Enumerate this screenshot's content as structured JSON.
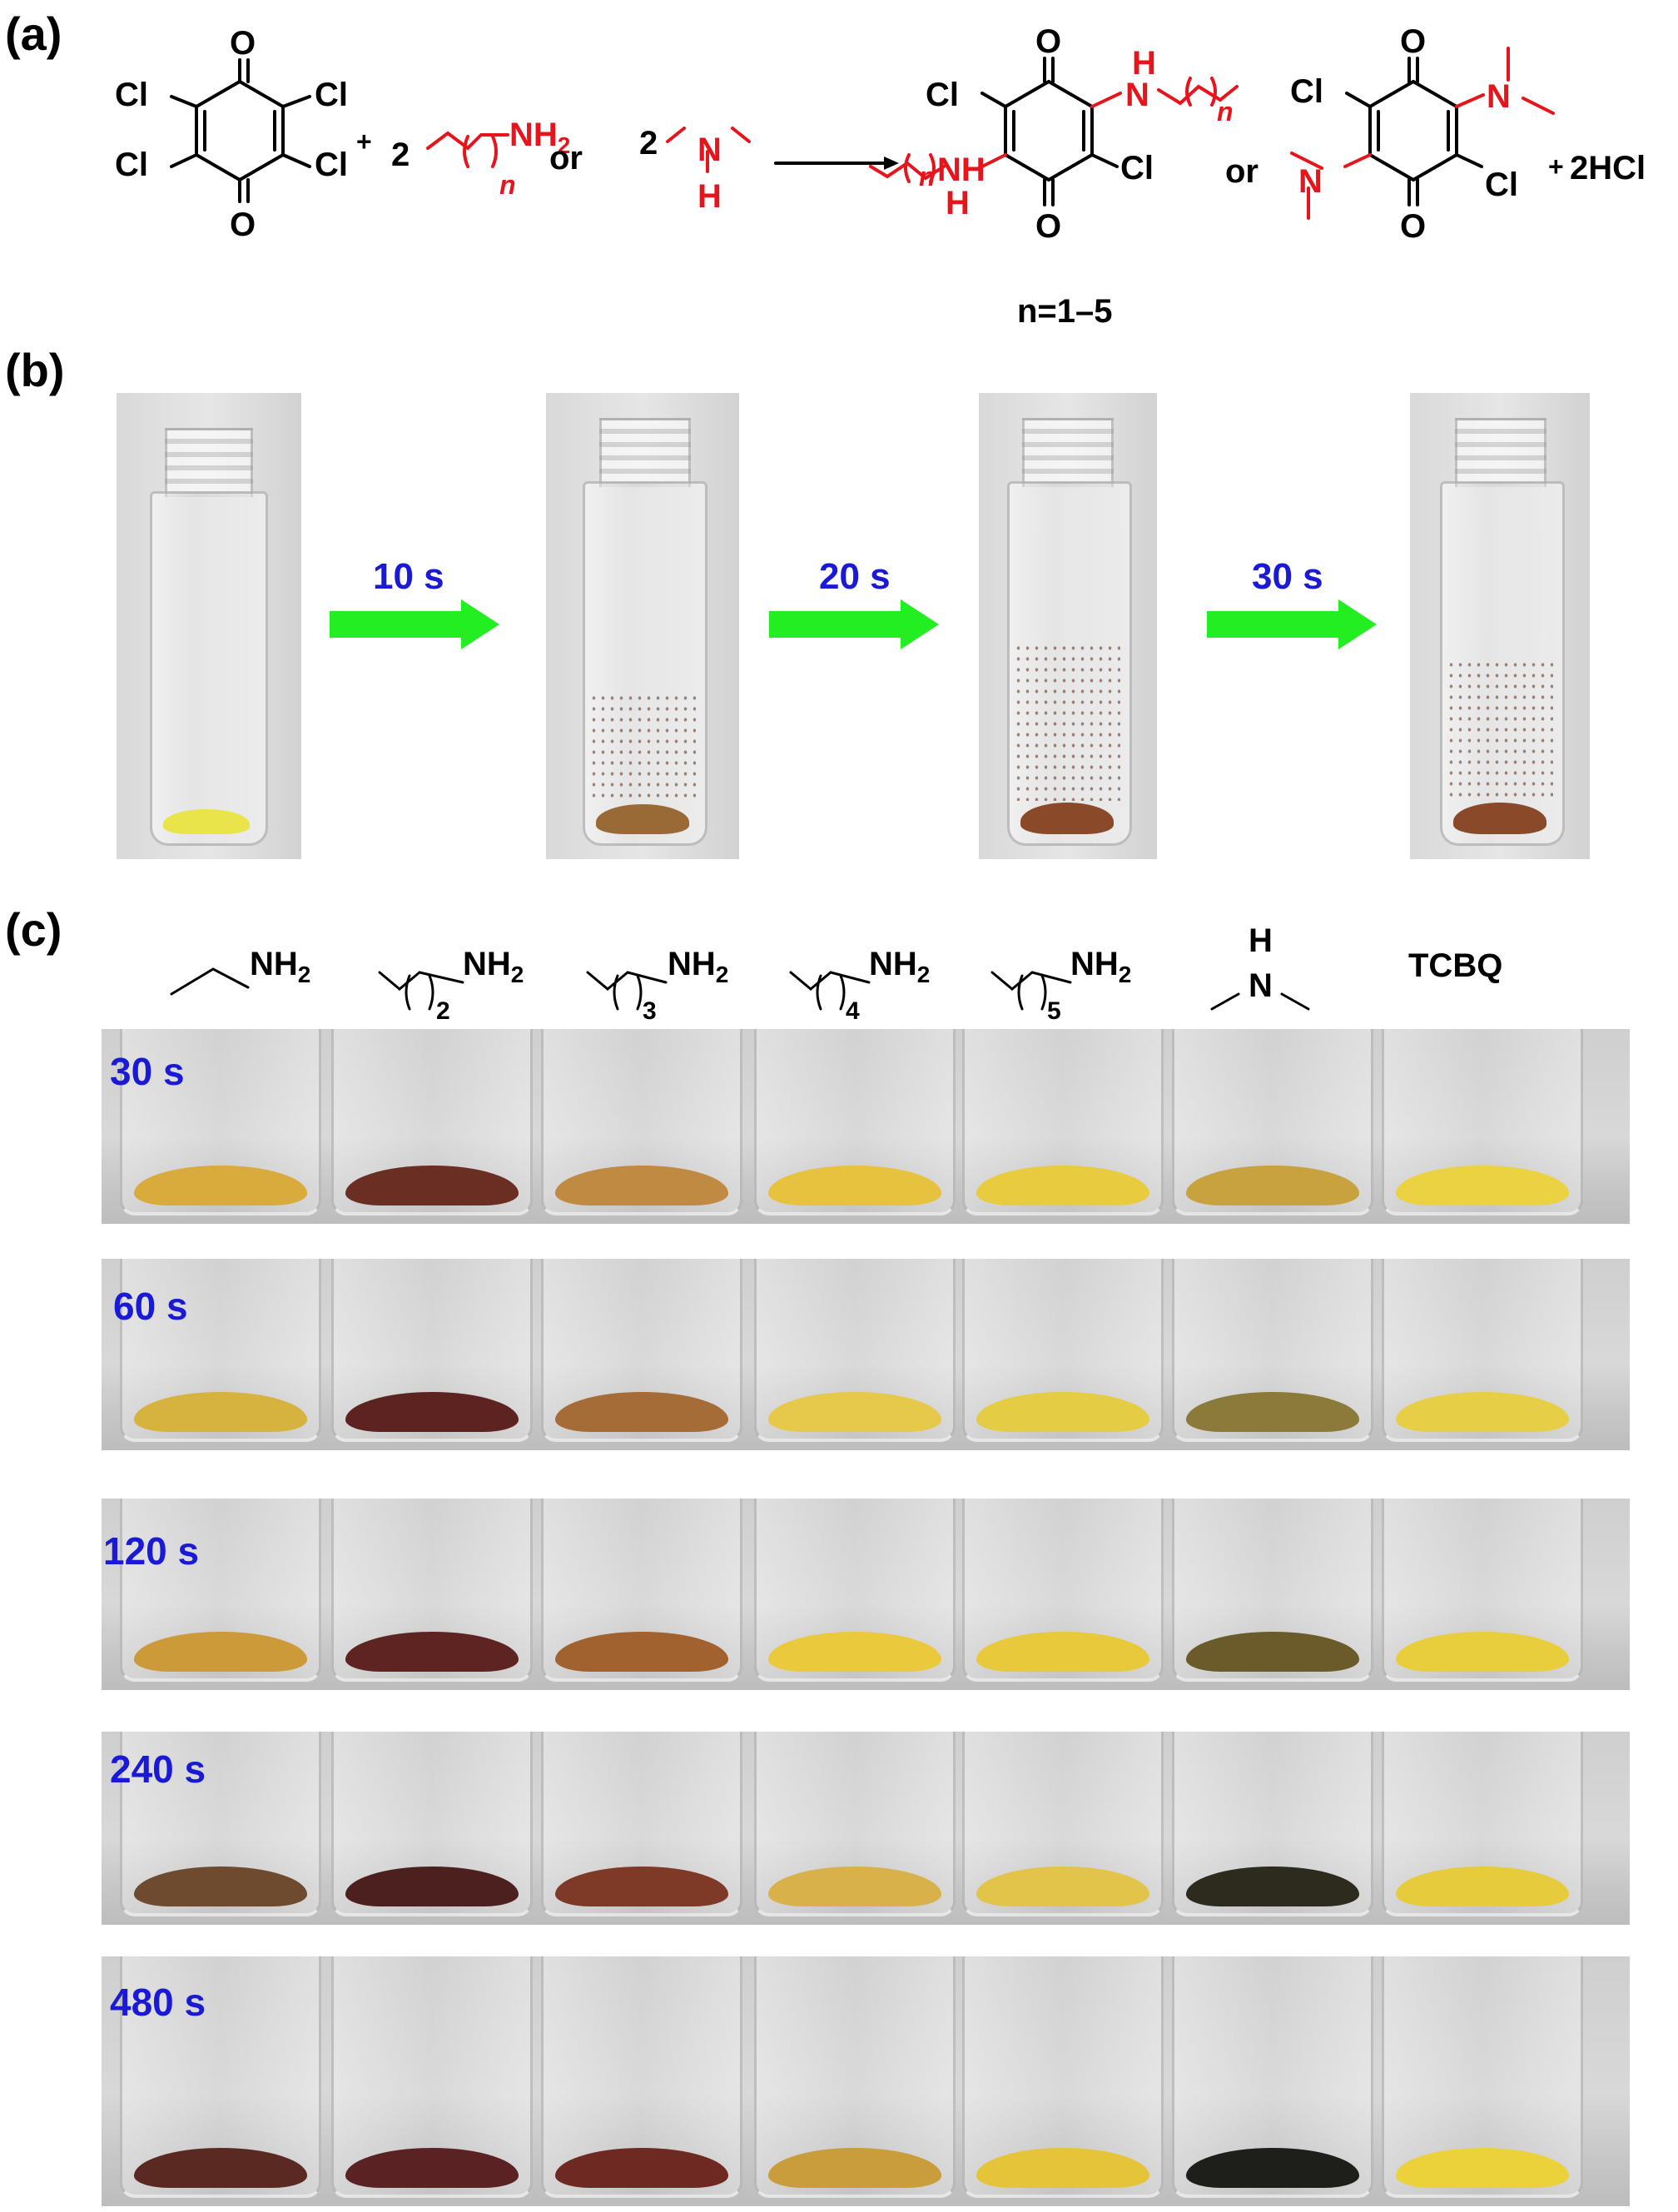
{
  "panels": {
    "a": "(a)",
    "b": "(b)",
    "c": "(c)"
  },
  "reaction": {
    "cl": "Cl",
    "o": "O",
    "plus": "+",
    "two": "2",
    "nh2": "NH",
    "nh2_sub": "2",
    "or": "or",
    "n_italic": "n",
    "N": "N",
    "H": "H",
    "NH": "NH",
    "plus_2hcl": "2HCl",
    "n_range": "n=1–5"
  },
  "arrows_b": [
    "10 s",
    "20 s",
    "30 s"
  ],
  "columns": [
    {
      "main": "NH",
      "sub": "2",
      "chain_sub": ""
    },
    {
      "main": "NH",
      "sub": "2",
      "chain_sub": "2"
    },
    {
      "main": "NH",
      "sub": "2",
      "chain_sub": "3"
    },
    {
      "main": "NH",
      "sub": "2",
      "chain_sub": "4"
    },
    {
      "main": "NH",
      "sub": "2",
      "chain_sub": "5"
    },
    {
      "main": "N",
      "sub": "",
      "chain_sub": "",
      "top": "H"
    },
    {
      "main": "TCBQ",
      "sub": "",
      "chain_sub": ""
    }
  ],
  "rows": [
    {
      "time": "30 s",
      "colors": [
        "#d9aa3c",
        "#6a2e22",
        "#c18a42",
        "#e6c23e",
        "#e8cb3f",
        "#c7a23f",
        "#ead243"
      ]
    },
    {
      "time": "60 s",
      "colors": [
        "#d6b23f",
        "#5c2320",
        "#a56c38",
        "#e6c84a",
        "#e4cc44",
        "#8c7a3a",
        "#e6cf47"
      ]
    },
    {
      "time": "120 s",
      "colors": [
        "#cc9a38",
        "#5e2422",
        "#a2622f",
        "#ebc93d",
        "#e7c93b",
        "#6b5a2a",
        "#e8ce3d"
      ]
    },
    {
      "time": "240 s",
      "colors": [
        "#6e4a2e",
        "#4d2020",
        "#7e3a26",
        "#d9b14a",
        "#e2c44a",
        "#2d2a1e",
        "#e6cc3d"
      ]
    },
    {
      "time": "480 s",
      "colors": [
        "#5a2a22",
        "#5a2222",
        "#6e2a22",
        "#c99c3c",
        "#e6c43a",
        "#1e1e1a",
        "#ecd23a"
      ]
    }
  ]
}
